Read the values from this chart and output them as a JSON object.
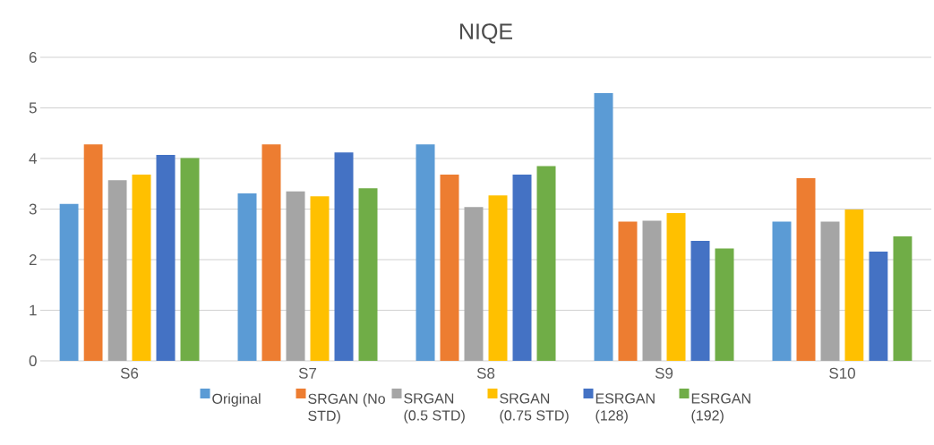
{
  "chart_data": {
    "type": "bar",
    "title": "NIQE",
    "categories": [
      "S6",
      "S7",
      "S8",
      "S9",
      "S10"
    ],
    "series": [
      {
        "name": "Original",
        "color": "#5b9bd5",
        "values": [
          3.1,
          3.31,
          4.28,
          5.29,
          2.75
        ]
      },
      {
        "name": "SRGAN (No STD)",
        "color": "#ed7d31",
        "values": [
          4.28,
          4.28,
          3.68,
          2.75,
          3.61
        ]
      },
      {
        "name": "SRGAN (0.5 STD)",
        "color": "#a5a5a5",
        "values": [
          3.57,
          3.35,
          3.04,
          2.77,
          2.75
        ]
      },
      {
        "name": "SRGAN (0.75 STD)",
        "color": "#ffc000",
        "values": [
          3.68,
          3.25,
          3.27,
          2.92,
          2.99
        ]
      },
      {
        "name": "ESRGAN (128)",
        "color": "#4472c4",
        "values": [
          4.07,
          4.12,
          3.68,
          2.37,
          2.16
        ]
      },
      {
        "name": "ESRGAN (192)",
        "color": "#70ad47",
        "values": [
          4.01,
          3.41,
          3.85,
          2.22,
          2.46
        ]
      }
    ],
    "ylim": [
      0,
      6
    ],
    "yticks": [
      0,
      1,
      2,
      3,
      4,
      5,
      6
    ],
    "grid": "y",
    "legend": "bottom"
  }
}
